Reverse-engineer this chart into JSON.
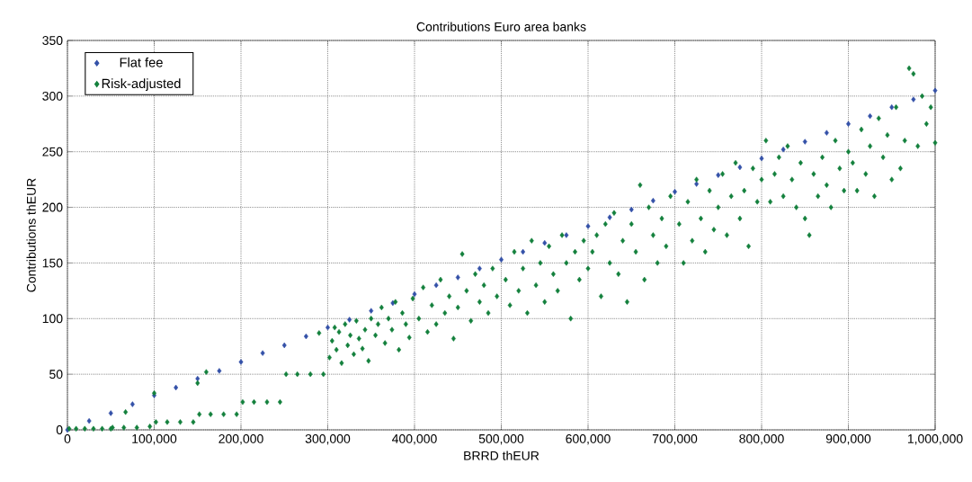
{
  "chart_data": {
    "type": "scatter",
    "title": "Contributions Euro area banks",
    "xlabel": "BRRD thEUR",
    "ylabel": "Contributions thEUR",
    "xlim": [
      0,
      1000000
    ],
    "ylim": [
      0,
      350
    ],
    "xticks": [
      0,
      {
        "value": 100000,
        "label": "100,000"
      },
      {
        "value": 200000,
        "label": "200,000"
      },
      {
        "value": 300000,
        "label": "300,000"
      },
      {
        "value": 400000,
        "label": "400,000"
      },
      {
        "value": 500000,
        "label": "500,000"
      },
      {
        "value": 600000,
        "label": "600,000"
      },
      {
        "value": 700000,
        "label": "700,000"
      },
      {
        "value": 800000,
        "label": "800,000"
      },
      {
        "value": 900000,
        "label": "900,000"
      },
      {
        "value": 1000000,
        "label": "1,000,000"
      }
    ],
    "yticks": [
      0,
      50,
      100,
      150,
      200,
      250,
      300,
      350
    ],
    "grid": true,
    "legend": "top left",
    "marker": "diamond",
    "series": [
      {
        "name": "Flat fee",
        "color": "#3451a8",
        "x": [
          0,
          25000,
          50000,
          75000,
          100000,
          125000,
          150000,
          175000,
          200000,
          225000,
          250000,
          275000,
          300000,
          325000,
          350000,
          375000,
          400000,
          425000,
          450000,
          475000,
          500000,
          525000,
          550000,
          575000,
          600000,
          625000,
          650000,
          675000,
          700000,
          725000,
          750000,
          775000,
          800000,
          825000,
          850000,
          875000,
          900000,
          925000,
          950000,
          975000,
          1000000
        ],
        "values": [
          0,
          8,
          15,
          23,
          31,
          38,
          46,
          53,
          61,
          69,
          76,
          84,
          92,
          99,
          107,
          114,
          122,
          130,
          137,
          145,
          153,
          160,
          168,
          175,
          183,
          191,
          198,
          206,
          214,
          221,
          229,
          236,
          244,
          252,
          259,
          267,
          275,
          282,
          290,
          297,
          305
        ]
      },
      {
        "name": "Risk-adjusted",
        "color": "#13803c",
        "x": [
          2000,
          10000,
          20000,
          30000,
          40000,
          50000,
          52000,
          65000,
          67000,
          80000,
          95000,
          100000,
          102000,
          115000,
          130000,
          145000,
          150000,
          152000,
          160000,
          165000,
          180000,
          195000,
          202000,
          215000,
          230000,
          245000,
          252000,
          265000,
          280000,
          290000,
          295000,
          302000,
          305000,
          308000,
          310000,
          313000,
          316000,
          320000,
          323000,
          326000,
          330000,
          333000,
          336000,
          340000,
          343000,
          347000,
          350000,
          355000,
          358000,
          362000,
          366000,
          370000,
          374000,
          378000,
          382000,
          386000,
          390000,
          394000,
          398000,
          405000,
          410000,
          415000,
          420000,
          425000,
          430000,
          435000,
          440000,
          445000,
          450000,
          455000,
          460000,
          465000,
          470000,
          475000,
          480000,
          485000,
          490000,
          495000,
          505000,
          510000,
          515000,
          520000,
          525000,
          530000,
          535000,
          540000,
          545000,
          550000,
          555000,
          560000,
          565000,
          570000,
          575000,
          580000,
          585000,
          590000,
          595000,
          600000,
          605000,
          610000,
          615000,
          620000,
          625000,
          630000,
          635000,
          640000,
          645000,
          650000,
          655000,
          660000,
          665000,
          670000,
          675000,
          680000,
          685000,
          690000,
          695000,
          705000,
          710000,
          715000,
          720000,
          725000,
          730000,
          735000,
          740000,
          745000,
          750000,
          755000,
          760000,
          765000,
          770000,
          775000,
          780000,
          785000,
          790000,
          795000,
          800000,
          805000,
          810000,
          815000,
          820000,
          825000,
          830000,
          835000,
          840000,
          845000,
          850000,
          855000,
          860000,
          865000,
          870000,
          875000,
          880000,
          885000,
          890000,
          895000,
          900000,
          905000,
          910000,
          915000,
          920000,
          925000,
          930000,
          935000,
          940000,
          945000,
          950000,
          955000,
          960000,
          965000,
          970000,
          975000,
          980000,
          985000,
          990000,
          995000,
          1000000
        ],
        "values": [
          1,
          1,
          1,
          1,
          1,
          1,
          2,
          2,
          16,
          2,
          3,
          33,
          7,
          7,
          7,
          7,
          42,
          14,
          52,
          14,
          14,
          14,
          25,
          25,
          25,
          25,
          50,
          50,
          50,
          87,
          50,
          65,
          80,
          92,
          72,
          88,
          60,
          95,
          76,
          85,
          68,
          98,
          82,
          73,
          90,
          62,
          100,
          85,
          95,
          110,
          78,
          100,
          90,
          115,
          72,
          105,
          95,
          83,
          118,
          100,
          128,
          88,
          112,
          95,
          135,
          105,
          120,
          82,
          110,
          158,
          125,
          98,
          140,
          115,
          130,
          105,
          145,
          120,
          135,
          112,
          160,
          125,
          145,
          105,
          170,
          130,
          150,
          115,
          165,
          140,
          125,
          175,
          150,
          100,
          160,
          135,
          170,
          145,
          160,
          175,
          120,
          185,
          150,
          195,
          140,
          170,
          115,
          185,
          160,
          220,
          135,
          200,
          175,
          150,
          190,
          165,
          210,
          185,
          150,
          205,
          170,
          225,
          190,
          160,
          215,
          180,
          200,
          230,
          175,
          210,
          240,
          190,
          215,
          165,
          235,
          205,
          225,
          260,
          205,
          230,
          245,
          210,
          255,
          225,
          200,
          240,
          190,
          175,
          230,
          210,
          245,
          220,
          200,
          260,
          235,
          215,
          250,
          240,
          215,
          270,
          230,
          255,
          210,
          280,
          245,
          265,
          225,
          290,
          235,
          260,
          325,
          320,
          255,
          300,
          275,
          290,
          258
        ]
      }
    ]
  }
}
